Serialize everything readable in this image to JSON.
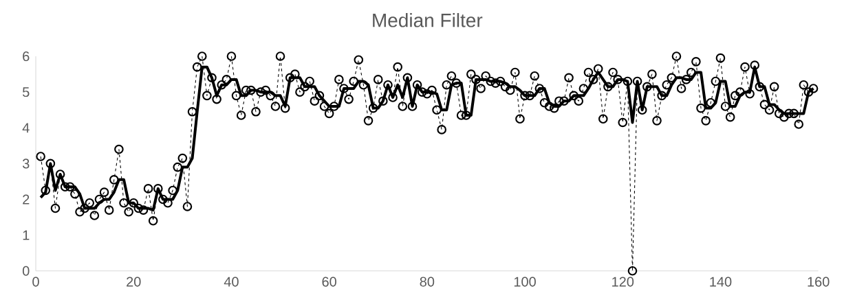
{
  "chart_data": {
    "type": "line",
    "title": "Median Filter",
    "x": [
      1,
      2,
      3,
      4,
      5,
      6,
      7,
      8,
      9,
      10,
      11,
      12,
      13,
      14,
      15,
      16,
      17,
      18,
      19,
      20,
      21,
      22,
      23,
      24,
      25,
      26,
      27,
      28,
      29,
      30,
      31,
      32,
      33,
      34,
      35,
      36,
      37,
      38,
      39,
      40,
      41,
      42,
      43,
      44,
      45,
      46,
      47,
      48,
      49,
      50,
      51,
      52,
      53,
      54,
      55,
      56,
      57,
      58,
      59,
      60,
      61,
      62,
      63,
      64,
      65,
      66,
      67,
      68,
      69,
      70,
      71,
      72,
      73,
      74,
      75,
      76,
      77,
      78,
      79,
      80,
      81,
      82,
      83,
      84,
      85,
      86,
      87,
      88,
      89,
      90,
      91,
      92,
      93,
      94,
      95,
      96,
      97,
      98,
      99,
      100,
      101,
      102,
      103,
      104,
      105,
      106,
      107,
      108,
      109,
      110,
      111,
      112,
      113,
      114,
      115,
      116,
      117,
      118,
      119,
      120,
      121,
      122,
      123,
      124,
      125,
      126,
      127,
      128,
      129,
      130,
      131,
      132,
      133,
      134,
      135,
      136,
      137,
      138,
      139,
      140,
      141,
      142,
      143,
      144,
      145,
      146,
      147,
      148,
      149,
      150,
      151,
      152,
      153,
      154,
      155,
      156,
      157,
      158,
      159
    ],
    "series": [
      {
        "color": "#000000",
        "marker": "circle",
        "line_style": "dashed",
        "values": [
          3.2,
          2.25,
          3.0,
          1.75,
          2.7,
          2.35,
          2.35,
          2.15,
          1.65,
          1.75,
          1.9,
          1.55,
          2.0,
          2.2,
          1.7,
          2.55,
          3.4,
          1.9,
          1.65,
          1.9,
          1.75,
          1.7,
          2.3,
          1.4,
          2.3,
          2.0,
          1.9,
          2.25,
          2.9,
          3.15,
          1.8,
          4.45,
          5.7,
          6,
          4.9,
          5.4,
          4.8,
          5.2,
          5.35,
          6,
          4.9,
          4.35,
          5.05,
          5.05,
          4.45,
          5.0,
          5.05,
          4.9,
          4.6,
          6,
          4.55,
          5.4,
          5.5,
          5.0,
          5.15,
          5.3,
          4.75,
          4.9,
          4.6,
          4.4,
          4.6,
          5.35,
          5.1,
          4.8,
          5.3,
          5.9,
          5.2,
          4.2,
          4.55,
          5.35,
          4.75,
          5.2,
          4.85,
          5.7,
          4.6,
          5.4,
          4.6,
          5.2,
          5.0,
          4.95,
          5.05,
          4.5,
          3.95,
          5.2,
          5.45,
          5.25,
          4.35,
          4.35,
          5.5,
          5.35,
          5.1,
          5.45,
          5.3,
          5.25,
          5.3,
          5.15,
          5.05,
          5.55,
          4.25,
          4.9,
          4.9,
          5.45,
          5.1,
          4.7,
          4.6,
          4.55,
          4.75,
          4.75,
          5.4,
          4.9,
          4.75,
          5.1,
          5.55,
          5.35,
          5.65,
          4.25,
          5.15,
          5.55,
          5.35,
          4.15,
          5.3,
          0,
          5.3,
          4.5,
          5.15,
          5.5,
          4.2,
          4.9,
          5.2,
          5.4,
          6,
          5.1,
          5.35,
          5.55,
          5.85,
          4.55,
          4.2,
          4.7,
          5.3,
          5.95,
          4.6,
          4.3,
          4.9,
          5.0,
          5.7,
          4.95,
          5.75,
          5.15,
          4.65,
          4.5,
          5.15,
          4.4,
          4.3,
          4.4,
          4.4,
          4.1,
          5.2,
          5.0,
          5.1
        ]
      },
      {
        "color": "#000000",
        "marker": "none",
        "line_style": "solid",
        "values": [
          2.05,
          2.2,
          3.0,
          2.25,
          2.7,
          2.35,
          2.35,
          2.35,
          2.15,
          1.75,
          1.75,
          1.75,
          1.9,
          2.0,
          2.0,
          2.2,
          2.55,
          2.55,
          1.9,
          1.9,
          1.75,
          1.75,
          1.75,
          1.7,
          2.3,
          2.0,
          2.0,
          2.0,
          2.25,
          2.9,
          2.9,
          3.15,
          4.45,
          5.7,
          5.7,
          5.4,
          4.9,
          5.2,
          5.2,
          5.35,
          5.35,
          4.9,
          4.9,
          5.05,
          5.05,
          5.0,
          5.0,
          5.0,
          4.9,
          4.9,
          4.6,
          5.4,
          5.4,
          5.4,
          5.15,
          5.15,
          5.15,
          4.9,
          4.75,
          4.6,
          4.6,
          4.6,
          5.1,
          5.1,
          5.1,
          5.3,
          5.3,
          5.2,
          4.55,
          4.55,
          4.75,
          5.2,
          4.85,
          5.2,
          4.85,
          5.4,
          4.6,
          5.2,
          5.0,
          5.0,
          5.0,
          4.95,
          4.5,
          4.5,
          5.2,
          5.25,
          5.25,
          4.35,
          4.35,
          5.35,
          5.35,
          5.35,
          5.3,
          5.3,
          5.3,
          5.25,
          5.15,
          5.15,
          5.05,
          4.9,
          4.9,
          4.9,
          5.1,
          5.1,
          4.7,
          4.6,
          4.6,
          4.75,
          4.75,
          4.9,
          4.9,
          4.9,
          5.1,
          5.35,
          5.55,
          5.35,
          5.15,
          5.15,
          5.35,
          5.35,
          5.3,
          4.15,
          5.3,
          4.5,
          5.15,
          5.15,
          5.15,
          4.9,
          4.9,
          5.2,
          5.4,
          5.4,
          5.35,
          5.35,
          5.55,
          5.55,
          4.55,
          4.55,
          4.7,
          5.3,
          5.3,
          4.6,
          4.6,
          4.9,
          5.0,
          5.0,
          5.7,
          5.15,
          5.15,
          4.65,
          4.65,
          4.5,
          4.4,
          4.4,
          4.4,
          4.4,
          4.4,
          5.0,
          5.1
        ]
      }
    ],
    "xlim": [
      0,
      160
    ],
    "xticks": [
      0,
      20,
      40,
      60,
      80,
      100,
      120,
      140,
      160
    ],
    "ylim": [
      0,
      6
    ],
    "yticks": [
      0,
      1,
      2,
      3,
      4,
      5,
      6
    ]
  }
}
